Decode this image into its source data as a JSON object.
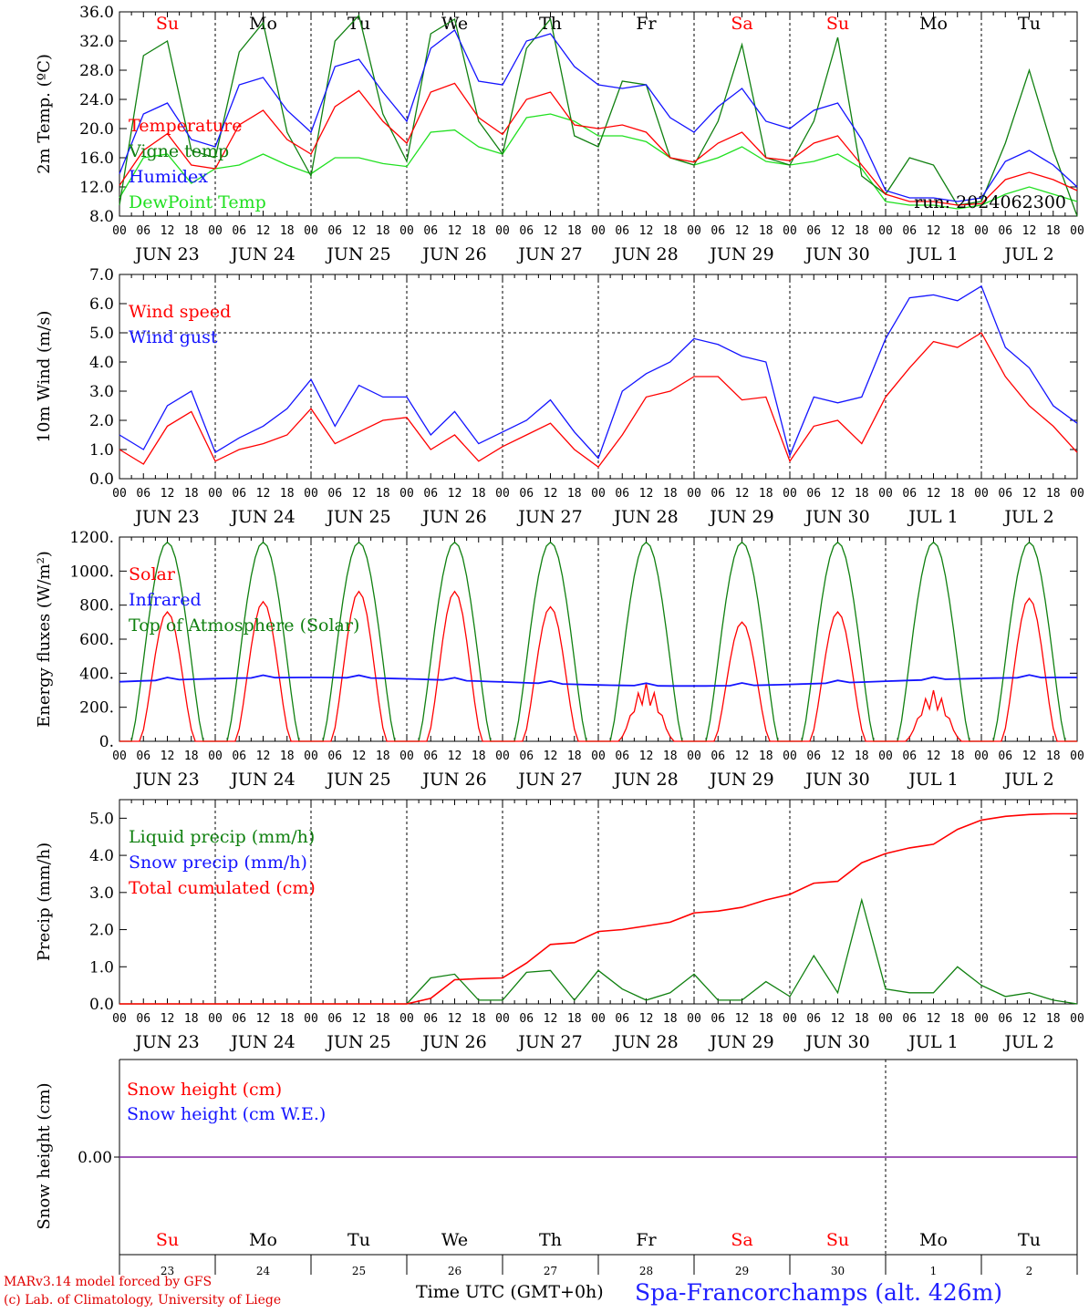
{
  "colors": {
    "red": "#ff0000",
    "darkgreen": "#108010",
    "blue": "#1414ff",
    "lightgreen": "#20e020",
    "axis": "#000000",
    "purple": "#8020a0"
  },
  "chart_data": [
    {
      "type": "line",
      "ylabel": "2m Temp. (ºC)",
      "ylim": [
        8,
        36
      ],
      "yticks": [
        "8.0",
        "12.0",
        "16.0",
        "20.0",
        "24.0",
        "28.0",
        "32.0",
        "36.0"
      ],
      "day_names": [
        "Su",
        "Mo",
        "Tu",
        "We",
        "Th",
        "Fr",
        "Sa",
        "Su",
        "Mo",
        "Tu"
      ],
      "day_name_colors": [
        "red",
        "black",
        "black",
        "black",
        "black",
        "black",
        "red",
        "red",
        "black",
        "black"
      ],
      "run_label": "run: 2024062300",
      "x_hours": [
        0,
        6,
        12,
        18,
        24,
        30,
        36,
        42,
        48,
        54,
        60,
        66,
        72,
        78,
        84,
        90,
        96,
        102,
        108,
        114,
        120,
        126,
        132,
        138,
        144,
        150,
        156,
        162,
        168,
        174,
        180,
        186,
        192,
        198,
        204,
        210,
        216,
        222,
        228,
        234,
        240
      ],
      "series": [
        {
          "name": "Temperature",
          "color": "red",
          "values": [
            12.2,
            17.0,
            19.3,
            15.0,
            14.5,
            20.5,
            22.5,
            18.5,
            16.5,
            23.0,
            25.2,
            21.0,
            18.0,
            25.0,
            26.2,
            21.5,
            19.2,
            24.0,
            25.0,
            20.5,
            20.0,
            20.5,
            19.5,
            16.0,
            15.4,
            18.0,
            19.5,
            16.0,
            15.6,
            18.0,
            19.0,
            15.0,
            11.0,
            10.0,
            10.0,
            9.5,
            9.7,
            13.0,
            14.0,
            13.0,
            11.5
          ]
        },
        {
          "name": "Vigne temp",
          "color": "darkgreen",
          "values": [
            9.5,
            30.0,
            32.0,
            17.0,
            16.0,
            30.5,
            34.5,
            19.5,
            13.5,
            32.0,
            35.5,
            22.0,
            15.5,
            33.0,
            35.0,
            21.0,
            16.5,
            31.0,
            35.0,
            19.0,
            17.5,
            26.5,
            26.0,
            16.0,
            15.0,
            21.0,
            31.5,
            16.0,
            15.0,
            21.0,
            32.5,
            13.5,
            11.0,
            16.0,
            15.0,
            9.5,
            10.0,
            18.0,
            28.0,
            17.0,
            8.0
          ]
        },
        {
          "name": "Humidex",
          "color": "blue",
          "values": [
            13.8,
            22.0,
            23.5,
            18.5,
            17.5,
            26.0,
            27.0,
            22.5,
            19.5,
            28.5,
            29.5,
            25.0,
            21.0,
            31.0,
            33.5,
            26.5,
            26.0,
            32.0,
            33.0,
            28.5,
            26.0,
            25.5,
            26.0,
            21.5,
            19.5,
            23.0,
            25.5,
            21.0,
            20.0,
            22.5,
            23.5,
            18.5,
            11.5,
            10.5,
            10.5,
            10.0,
            10.5,
            15.5,
            17.0,
            15.0,
            12.0
          ]
        },
        {
          "name": "DewPoint Temp",
          "color": "lightgreen",
          "values": [
            10.5,
            16.0,
            16.5,
            12.5,
            14.5,
            15.0,
            16.5,
            15.0,
            13.8,
            16.0,
            16.0,
            15.2,
            14.8,
            19.5,
            19.8,
            17.5,
            16.5,
            21.5,
            22.0,
            21.0,
            19.0,
            19.0,
            18.2,
            16.0,
            15.0,
            16.0,
            17.5,
            15.5,
            15.0,
            15.5,
            16.5,
            14.5,
            10.0,
            9.5,
            9.5,
            9.0,
            9.5,
            11.0,
            12.0,
            11.0,
            10.0
          ]
        }
      ]
    },
    {
      "type": "line",
      "ylabel": "10m Wind (m/s)",
      "ylim": [
        0,
        7
      ],
      "yticks": [
        "0.0",
        "1.0",
        "2.0",
        "3.0",
        "4.0",
        "5.0",
        "6.0",
        "7.0"
      ],
      "x_hours": [
        0,
        6,
        12,
        18,
        24,
        30,
        36,
        42,
        48,
        54,
        60,
        66,
        72,
        78,
        84,
        90,
        96,
        102,
        108,
        114,
        120,
        126,
        132,
        138,
        144,
        150,
        156,
        162,
        168,
        174,
        180,
        186,
        192,
        198,
        204,
        210,
        216,
        222,
        228,
        234,
        240
      ],
      "series": [
        {
          "name": "Wind speed",
          "color": "red",
          "values": [
            1.0,
            0.5,
            1.8,
            2.3,
            0.6,
            1.0,
            1.2,
            1.5,
            2.4,
            1.2,
            1.6,
            2.0,
            2.1,
            1.0,
            1.5,
            0.6,
            1.1,
            1.5,
            1.9,
            1.0,
            0.4,
            1.5,
            2.8,
            3.0,
            3.5,
            3.5,
            2.7,
            2.8,
            0.6,
            1.8,
            2.0,
            1.2,
            2.8,
            3.8,
            4.7,
            4.5,
            5.0,
            3.5,
            2.5,
            1.8,
            0.9
          ]
        },
        {
          "name": "Wind gust",
          "color": "blue",
          "values": [
            1.5,
            1.0,
            2.5,
            3.0,
            0.9,
            1.4,
            1.8,
            2.4,
            3.4,
            1.8,
            3.2,
            2.8,
            2.8,
            1.5,
            2.3,
            1.2,
            1.6,
            2.0,
            2.7,
            1.6,
            0.7,
            3.0,
            3.6,
            4.0,
            4.8,
            4.6,
            4.2,
            4.0,
            0.8,
            2.8,
            2.6,
            2.8,
            4.8,
            6.2,
            6.3,
            6.1,
            6.6,
            4.5,
            3.8,
            2.5,
            1.9
          ]
        }
      ],
      "ref_line": 5.0
    },
    {
      "type": "line",
      "ylabel": "Energy fluxes (W/m²)",
      "ylim": [
        0,
        1200
      ],
      "yticks": [
        "0.",
        "200.",
        "400.",
        "600.",
        "800.",
        "1000.",
        "1200."
      ],
      "legend": [
        "Solar",
        "Infrared",
        "Top of Atmosphere (Solar)"
      ],
      "toa_peak": 1170,
      "solar_peaks": [
        760,
        820,
        880,
        880,
        790,
        340,
        700,
        760,
        300,
        840
      ],
      "infrared_level": 350
    },
    {
      "type": "line",
      "ylabel": "Precip (mm/h)",
      "ylim": [
        0,
        5.5
      ],
      "yticks": [
        "0.0",
        "1.0",
        "2.0",
        "3.0",
        "4.0",
        "5.0"
      ],
      "legend": [
        "Liquid precip (mm/h)",
        "Snow precip (mm/h)",
        "Total cumulated (cm)"
      ],
      "x_hours": [
        0,
        24,
        48,
        72,
        78,
        84,
        90,
        96,
        102,
        108,
        114,
        120,
        126,
        132,
        138,
        144,
        150,
        156,
        162,
        168,
        174,
        180,
        186,
        192,
        198,
        204,
        210,
        216,
        222,
        228,
        234,
        240
      ],
      "cumulated": [
        0,
        0,
        0,
        0,
        0.15,
        0.65,
        0.68,
        0.7,
        1.1,
        1.6,
        1.65,
        1.95,
        2.0,
        2.1,
        2.2,
        2.45,
        2.5,
        2.6,
        2.8,
        2.95,
        3.25,
        3.3,
        3.8,
        4.05,
        4.2,
        4.3,
        4.7,
        4.95,
        5.05,
        5.1,
        5.12,
        5.12
      ],
      "liquid": [
        0,
        0,
        0,
        0,
        0.7,
        0.8,
        0.1,
        0.1,
        0.85,
        0.9,
        0.1,
        0.9,
        0.4,
        0.1,
        0.3,
        0.8,
        0.1,
        0.1,
        0.6,
        0.2,
        1.3,
        0.3,
        2.8,
        0.4,
        0.3,
        0.3,
        1.0,
        0.5,
        0.2,
        0.3,
        0.1,
        0
      ]
    },
    {
      "type": "line",
      "ylabel": "Snow height (cm)",
      "ytick": "0.00",
      "legend": [
        "Snow height (cm)",
        "Snow height (cm W.E.)"
      ],
      "day_names": [
        "Su",
        "Mo",
        "Tu",
        "We",
        "Th",
        "Fr",
        "Sa",
        "Su",
        "Mo",
        "Tu"
      ],
      "day_numbers": [
        "23",
        "24",
        "25",
        "26",
        "27",
        "28",
        "29",
        "30",
        "1",
        "2"
      ]
    }
  ],
  "x_axis": {
    "hour_ticks": [
      "00",
      "06",
      "12",
      "18"
    ],
    "dates": [
      "JUN 23",
      "JUN 24",
      "JUN 25",
      "JUN 26",
      "JUN 27",
      "JUN 28",
      "JUN 29",
      "JUN 30",
      "JUL  1",
      "JUL  2"
    ]
  },
  "footer": {
    "model": "MARv3.14 model forced by GFS",
    "lab": "(c) Lab. of Climatology, University of Liege",
    "time_label": "Time UTC (GMT+0h)",
    "station": "Spa-Francorchamps (alt. 426m)"
  }
}
